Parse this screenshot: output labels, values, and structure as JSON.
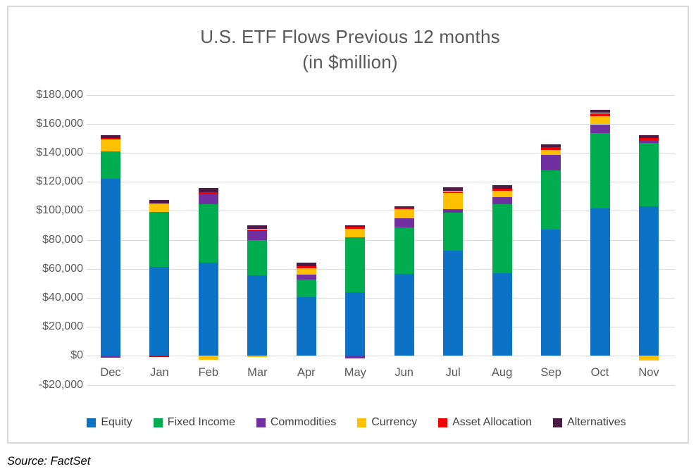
{
  "title": {
    "line1": "U.S. ETF Flows Previous 12 months",
    "line2": "(in $million)"
  },
  "source": "Source: FactSet",
  "colors": {
    "equity": "#0C72C5",
    "fixed_income": "#00AC50",
    "commodities": "#7030A0",
    "currency": "#FFC000",
    "asset_allocation": "#F20000",
    "alternatives": "#4B1A46",
    "gridline": "#D9D9D9",
    "axis_text": "#595959"
  },
  "chart_data": {
    "type": "bar",
    "stacked": true,
    "title": "U.S. ETF Flows Previous 12 months (in $million)",
    "xlabel": "",
    "ylabel": "",
    "ylim": [
      -20000,
      180000
    ],
    "grid": true,
    "legend_position": "bottom",
    "y_tick_labels": [
      "$180,000",
      "$160,000",
      "$140,000",
      "$120,000",
      "$100,000",
      "$80,000",
      "$60,000",
      "$40,000",
      "$20,000",
      "$0",
      "-$20,000"
    ],
    "y_tick_values": [
      180000,
      160000,
      140000,
      120000,
      100000,
      80000,
      60000,
      40000,
      20000,
      0,
      -20000
    ],
    "categories": [
      "Dec",
      "Jan",
      "Feb",
      "Mar",
      "Apr",
      "May",
      "Jun",
      "Jul",
      "Aug",
      "Sep",
      "Oct",
      "Nov"
    ],
    "series": [
      {
        "name": "Equity",
        "color": "#0C72C5",
        "values": [
          122000,
          61300,
          64200,
          55500,
          40400,
          43800,
          56500,
          72500,
          56900,
          87200,
          101400,
          103200
        ]
      },
      {
        "name": "Fixed Income",
        "color": "#00AC50",
        "values": [
          19000,
          38100,
          40300,
          24300,
          12300,
          37700,
          31800,
          26000,
          47800,
          40400,
          52200,
          43400
        ]
      },
      {
        "name": "Commodities",
        "color": "#7030A0",
        "values": [
          -1500,
          0,
          6900,
          6500,
          3200,
          -2000,
          6300,
          2400,
          4500,
          11000,
          6000,
          2000
        ]
      },
      {
        "name": "Currency",
        "color": "#FFC000",
        "values": [
          8300,
          5600,
          -3000,
          -1000,
          4700,
          6200,
          6300,
          11300,
          4500,
          3500,
          5800,
          -3300
        ]
      },
      {
        "name": "Asset Allocation",
        "color": "#F20000",
        "values": [
          1000,
          -700,
          1300,
          1000,
          1200,
          1300,
          1100,
          1300,
          1400,
          1600,
          2000,
          1500
        ]
      },
      {
        "name": "Alternatives",
        "color": "#4B1A46",
        "values": [
          2000,
          2400,
          2800,
          2700,
          2500,
          800,
          900,
          2500,
          2600,
          2100,
          2300,
          1800
        ]
      }
    ]
  }
}
